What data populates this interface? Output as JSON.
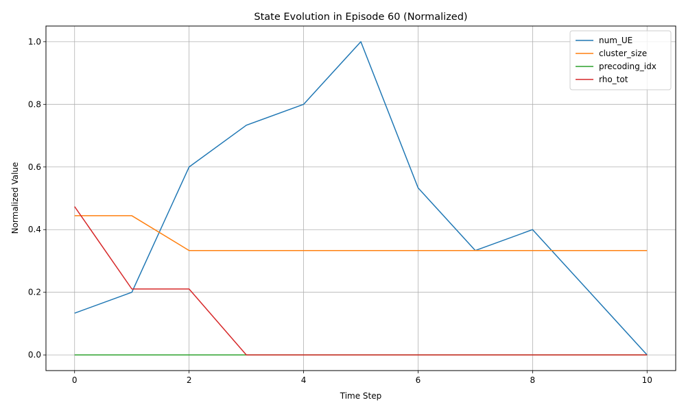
{
  "chart_data": {
    "type": "line",
    "title": "State Evolution in Episode 60 (Normalized)",
    "xlabel": "Time Step",
    "ylabel": "Normalized Value",
    "xlim": [
      -0.5,
      10.5
    ],
    "ylim": [
      -0.05,
      1.05
    ],
    "xticks": [
      0,
      2,
      4,
      6,
      8,
      10
    ],
    "xtick_labels": [
      "0",
      "2",
      "4",
      "6",
      "8",
      "10"
    ],
    "yticks": [
      0.0,
      0.2,
      0.4,
      0.6,
      0.8,
      1.0
    ],
    "ytick_labels": [
      "0.0",
      "0.2",
      "0.4",
      "0.6",
      "0.8",
      "1.0"
    ],
    "grid": true,
    "legend_position": "top-right",
    "x": [
      0,
      1,
      2,
      3,
      4,
      5,
      6,
      7,
      8,
      9,
      10
    ],
    "series": [
      {
        "name": "num_UE",
        "color": "#1f77b4",
        "values": [
          0.1333,
          0.2,
          0.6,
          0.7333,
          0.8,
          1.0,
          0.5333,
          0.3333,
          0.4,
          0.2,
          0.0
        ]
      },
      {
        "name": "cluster_size",
        "color": "#ff7f0e",
        "values": [
          0.4444,
          0.4444,
          0.3333,
          0.3333,
          0.3333,
          0.3333,
          0.3333,
          0.3333,
          0.3333,
          0.3333,
          0.3333
        ]
      },
      {
        "name": "precoding_idx",
        "color": "#2ca02c",
        "values": [
          0,
          0,
          0,
          0,
          0,
          0,
          0,
          0,
          0,
          0,
          0
        ]
      },
      {
        "name": "rho_tot",
        "color": "#d62728",
        "values": [
          0.4737,
          0.2105,
          0.2105,
          0.0,
          0.0,
          0.0,
          0.0,
          0.0,
          0.0,
          0.0,
          0.0
        ]
      }
    ]
  }
}
